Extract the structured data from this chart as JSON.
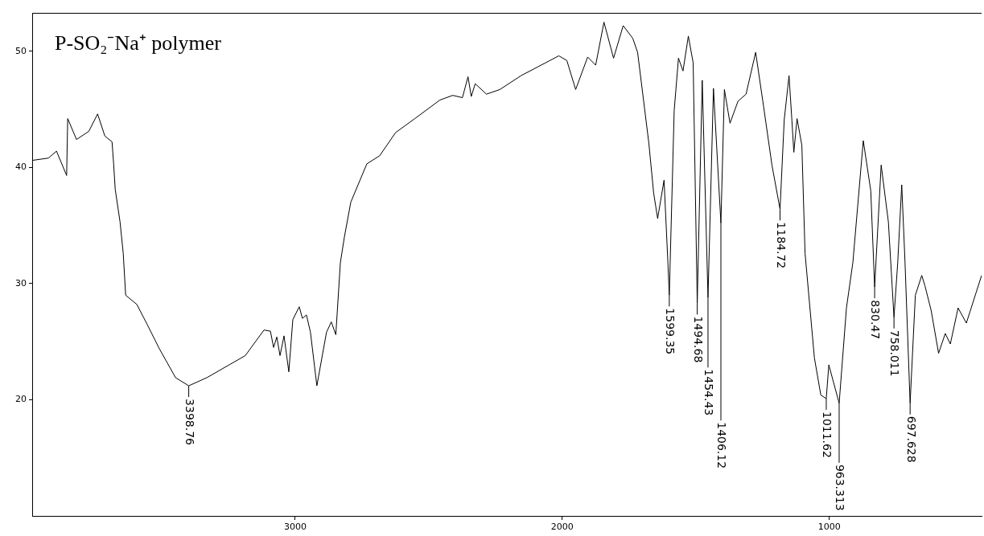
{
  "chart_data": {
    "type": "line",
    "title": "P-SO₂⁻Na⁺ polymer",
    "xlim": [
      3985,
      430
    ],
    "xticks": [
      3000,
      2000,
      1000
    ],
    "ylim": [
      10,
      53.3
    ],
    "yticks": [
      20,
      30,
      40,
      50
    ],
    "grid": false,
    "legend": false,
    "marker": "none",
    "line_style": "solid",
    "series": [
      {
        "color": "#000000",
        "x": [
          3985,
          3924,
          3894,
          3856,
          3852,
          3819,
          3773,
          3740,
          3713,
          3686,
          3680,
          3674,
          3656,
          3644,
          3635,
          3593,
          3557,
          3509,
          3448,
          3398.76,
          3331,
          3187,
          3117,
          3093,
          3081,
          3069,
          3057,
          3042,
          3024,
          3009,
          2985,
          2973,
          2958,
          2943,
          2919,
          2883,
          2865,
          2848,
          2831,
          2816,
          2792,
          2732,
          2684,
          2624,
          2552,
          2458,
          2410,
          2374,
          2353,
          2341,
          2326,
          2284,
          2234,
          2154,
          2013,
          1983,
          1950,
          1905,
          1875,
          1844,
          1808,
          1772,
          1736,
          1718,
          1676,
          1658,
          1643,
          1619,
          1605,
          1599.35,
          1581,
          1565,
          1548,
          1528,
          1510,
          1494.68,
          1476,
          1454.43,
          1434,
          1406.12,
          1393,
          1372,
          1342,
          1312,
          1276,
          1246,
          1215,
          1184.72,
          1169,
          1151,
          1141,
          1133,
          1121,
          1103,
          1091,
          1056,
          1032,
          1011.62,
          1002,
          963.313,
          936,
          912,
          873,
          845,
          830.47,
          806,
          779,
          758.011,
          744,
          729,
          717,
          697.628,
          678,
          654,
          642,
          619,
          591,
          566,
          547,
          518,
          487,
          430
        ],
        "values": [
          40.6,
          40.8,
          41.4,
          39.3,
          44.2,
          42.4,
          43.1,
          44.6,
          42.7,
          42.2,
          40.3,
          38.1,
          35.3,
          32.6,
          29.0,
          28.2,
          26.6,
          24.4,
          21.9,
          21.2,
          21.9,
          23.8,
          26.0,
          25.9,
          24.5,
          25.4,
          23.8,
          25.5,
          22.4,
          26.9,
          28.0,
          27.0,
          27.3,
          25.8,
          21.2,
          25.8,
          26.7,
          25.6,
          31.8,
          34.0,
          37.0,
          40.3,
          41.0,
          43.0,
          44.2,
          45.8,
          46.2,
          46.0,
          47.8,
          46.1,
          47.2,
          46.3,
          46.7,
          47.9,
          49.6,
          49.2,
          46.7,
          49.5,
          48.8,
          52.5,
          49.4,
          52.2,
          51.1,
          49.9,
          42.1,
          37.8,
          35.6,
          38.9,
          32.0,
          29.0,
          44.9,
          49.4,
          48.3,
          51.3,
          49.0,
          28.3,
          47.5,
          28.8,
          46.8,
          35.2,
          46.7,
          43.8,
          45.7,
          46.3,
          49.9,
          45.2,
          40.2,
          36.4,
          44.1,
          47.9,
          44.3,
          41.3,
          44.2,
          41.9,
          32.6,
          23.6,
          20.4,
          20.1,
          23.0,
          19.7,
          27.9,
          31.8,
          42.3,
          38.0,
          29.7,
          40.2,
          35.3,
          27.1,
          31.8,
          38.5,
          32.0,
          19.7,
          29.0,
          30.7,
          29.8,
          27.7,
          24.0,
          25.7,
          24.8,
          27.9,
          26.6,
          30.7
        ]
      }
    ],
    "annotations": [
      {
        "text": "3398.76",
        "x": 3398.76,
        "y": 21.2
      },
      {
        "text": "1599.35",
        "x": 1599.35,
        "y": 29.0
      },
      {
        "text": "1494.68",
        "x": 1494.68,
        "y": 28.3
      },
      {
        "text": "1454.43",
        "x": 1454.43,
        "y": 28.8
      },
      {
        "text": "1406.12",
        "x": 1406.12,
        "y": 35.2
      },
      {
        "text": "1184.72",
        "x": 1184.72,
        "y": 36.4
      },
      {
        "text": "1011.62",
        "x": 1011.62,
        "y": 20.1
      },
      {
        "text": "963.313",
        "x": 963.313,
        "y": 19.7
      },
      {
        "text": "830.47",
        "x": 830.47,
        "y": 29.7
      },
      {
        "text": "758.011",
        "x": 758.011,
        "y": 27.1
      },
      {
        "text": "697.628",
        "x": 697.628,
        "y": 19.7
      }
    ]
  }
}
